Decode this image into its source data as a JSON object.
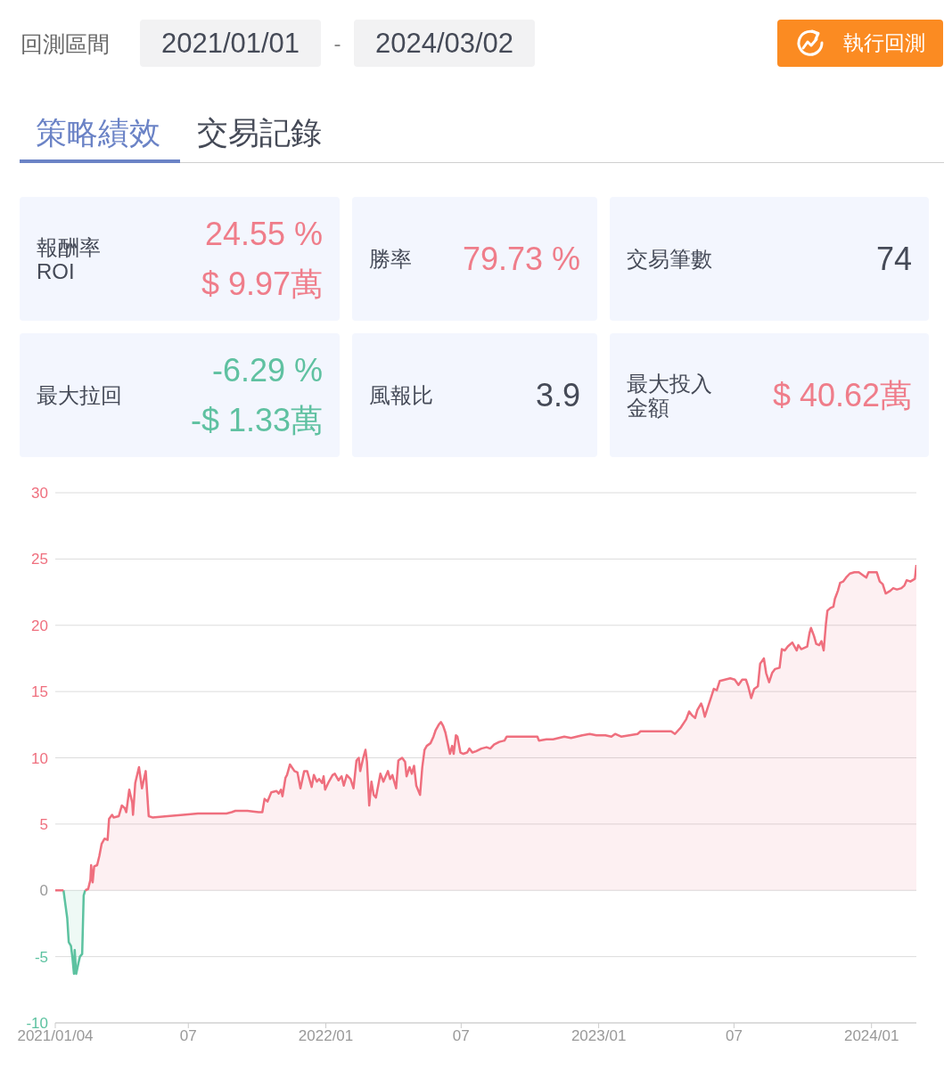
{
  "chart_data": [
    {
      "type": "other",
      "annotations": [
        "回測區間",
        "2021/01/01",
        "-",
        "2024/03/02",
        "執行回測",
        "策略績效",
        "交易記錄"
      ]
    },
    {
      "type": "other",
      "title": "報酬率 ROI",
      "annotations": [
        "24.55 %",
        "$ 9.97萬"
      ],
      "color": "#ef7d8a"
    },
    {
      "type": "other",
      "title": "勝率",
      "annotations": [
        "79.73 %"
      ],
      "color": "#ef7d8a"
    },
    {
      "type": "other",
      "title": "交易筆數",
      "annotations": [
        "74"
      ],
      "color": "#454a57"
    },
    {
      "type": "other",
      "title": "最大拉回",
      "annotations": [
        "-6.29 %",
        "-$ 1.33萬"
      ],
      "color": "#5fc1a1"
    },
    {
      "type": "other",
      "title": "風報比",
      "annotations": [
        "3.9"
      ],
      "color": "#454a57"
    },
    {
      "type": "other",
      "title": "最大投入金額",
      "annotations": [
        "$ 40.62萬"
      ],
      "color": "#ef7d8a"
    },
    {
      "type": "area",
      "xlim": [
        "2021-01-04",
        "2024-03-01"
      ],
      "xticks": [
        {
          "value": "2021-01-04",
          "label": "2021/01/04"
        },
        {
          "value": "2021-07-01",
          "label": "07"
        },
        {
          "value": "2022-01-01",
          "label": "2022/01"
        },
        {
          "value": "2022-07-01",
          "label": "07"
        },
        {
          "value": "2023-01-01",
          "label": "2023/01"
        },
        {
          "value": "2023-07-01",
          "label": "07"
        },
        {
          "value": "2024-01-01",
          "label": "2024/01"
        }
      ],
      "ylim": [
        -10,
        30
      ],
      "yticks": [
        -10,
        -5,
        0,
        5,
        10,
        15,
        20,
        25,
        30
      ],
      "grid": "y",
      "series": [
        {
          "type": "line",
          "color": "#ef6f7e",
          "x": [
            "2021-01-04",
            "2021-01-15"
          ],
          "values": [
            0,
            0
          ]
        },
        {
          "color": "#5cc2a0",
          "x": [
            "2021-01-15",
            "2021-01-20",
            "2021-01-22",
            "2021-01-25",
            "2021-01-27",
            "2021-01-29",
            "2021-01-30",
            "2021-02-01",
            "2021-02-04",
            "2021-02-06",
            "2021-02-09",
            "2021-02-11",
            "2021-02-13"
          ],
          "values": [
            0,
            -2.1,
            -3.9,
            -4.2,
            -5.1,
            -6.3,
            -4.5,
            -6.3,
            -5.5,
            -5.0,
            -4.8,
            -0.4,
            0
          ]
        },
        {
          "color": "#ef6f7e",
          "x": [
            "2021-02-13",
            "2021-02-17",
            "2021-02-20",
            "2021-02-21",
            "2021-02-23",
            "2021-02-25",
            "2021-03-01",
            "2021-03-04",
            "2021-03-07",
            "2021-03-11",
            "2021-03-15",
            "2021-03-17",
            "2021-03-21",
            "2021-03-23",
            "2021-03-30",
            "2021-04-03",
            "2021-04-07",
            "2021-04-09",
            "2021-04-13",
            "2021-04-17",
            "2021-04-18",
            "2021-04-21",
            "2021-04-26",
            "2021-04-30",
            "2021-05-05",
            "2021-05-09",
            "2021-05-14",
            "2021-06-03",
            "2021-06-24",
            "2021-07-14",
            "2021-08-02",
            "2021-08-21",
            "2021-08-28",
            "2021-09-02",
            "2021-09-18",
            "2021-10-03",
            "2021-10-08",
            "2021-10-11",
            "2021-10-15",
            "2021-10-20",
            "2021-10-27",
            "2021-10-30",
            "2021-11-02",
            "2021-11-04",
            "2021-11-08",
            "2021-11-10",
            "2021-11-14",
            "2021-11-20",
            "2021-11-24",
            "2021-11-28",
            "2021-12-03",
            "2021-12-07",
            "2021-12-13",
            "2021-12-16",
            "2021-12-20",
            "2021-12-23",
            "2021-12-27",
            "2021-12-29",
            "2021-12-31",
            "2022-01-05",
            "2022-01-10",
            "2022-01-13",
            "2022-01-18",
            "2022-01-22",
            "2022-01-25",
            "2022-01-29",
            "2022-02-03",
            "2022-02-07",
            "2022-02-11",
            "2022-02-14",
            "2022-02-16",
            "2022-02-20",
            "2022-02-23",
            "2022-02-25",
            "2022-02-28",
            "2022-03-03",
            "2022-03-06",
            "2022-03-09",
            "2022-03-13",
            "2022-03-15",
            "2022-03-19",
            "2022-03-22",
            "2022-03-25",
            "2022-03-28",
            "2022-03-31",
            "2022-04-02",
            "2022-04-05",
            "2022-04-08",
            "2022-04-13",
            "2022-04-17",
            "2022-04-19",
            "2022-04-23",
            "2022-04-26",
            "2022-04-29",
            "2022-05-02",
            "2022-05-07",
            "2022-05-10",
            "2022-05-13",
            "2022-05-16",
            "2022-05-21",
            "2022-05-25",
            "2022-05-28",
            "2022-06-01",
            "2022-06-04",
            "2022-06-07",
            "2022-06-10",
            "2022-06-16",
            "2022-06-19",
            "2022-06-21",
            "2022-06-24",
            "2022-06-26",
            "2022-06-30",
            "2022-07-04",
            "2022-07-09",
            "2022-07-12",
            "2022-07-16",
            "2022-07-21",
            "2022-07-28",
            "2022-08-04",
            "2022-08-09",
            "2022-08-14",
            "2022-08-21",
            "2022-08-28",
            "2022-08-31",
            "2022-09-24",
            "2022-10-11",
            "2022-10-13",
            "2022-10-23",
            "2022-11-01",
            "2022-11-16",
            "2022-11-25",
            "2022-12-10",
            "2022-12-20",
            "2022-12-29",
            "2023-01-10",
            "2023-01-18",
            "2023-01-23",
            "2023-01-31",
            "2023-02-11",
            "2023-02-22",
            "2023-02-26",
            "2023-03-15",
            "2023-03-31",
            "2023-04-08",
            "2023-04-13",
            "2023-04-21",
            "2023-04-28",
            "2023-05-02",
            "2023-05-06",
            "2023-05-10",
            "2023-05-13",
            "2023-05-18",
            "2023-05-20",
            "2023-05-23",
            "2023-05-27",
            "2023-05-31",
            "2023-06-04",
            "2023-06-08",
            "2023-06-12",
            "2023-06-19",
            "2023-06-26",
            "2023-07-02",
            "2023-07-07",
            "2023-07-12",
            "2023-07-17",
            "2023-07-20",
            "2023-07-24",
            "2023-07-28",
            "2023-08-02",
            "2023-08-05",
            "2023-08-10",
            "2023-08-13",
            "2023-08-17",
            "2023-08-21",
            "2023-08-25",
            "2023-08-31",
            "2023-09-03",
            "2023-09-07",
            "2023-09-11",
            "2023-09-17",
            "2023-09-20",
            "2023-09-23",
            "2023-09-25",
            "2023-09-29",
            "2023-10-07",
            "2023-10-10",
            "2023-10-12",
            "2023-10-16",
            "2023-10-19",
            "2023-10-23",
            "2023-10-26",
            "2023-10-29",
            "2023-11-01",
            "2023-11-03",
            "2023-11-07",
            "2023-11-11",
            "2023-11-13",
            "2023-11-17",
            "2023-11-20",
            "2023-11-24",
            "2023-11-28",
            "2023-12-03",
            "2023-12-09",
            "2023-12-15",
            "2023-12-20",
            "2023-12-25",
            "2023-12-28",
            "2024-01-02",
            "2024-01-08",
            "2024-01-12",
            "2024-01-16",
            "2024-01-20",
            "2024-01-26",
            "2024-01-30",
            "2024-02-04",
            "2024-02-10",
            "2024-02-14",
            "2024-02-17",
            "2024-02-22",
            "2024-02-28",
            "2024-03-01"
          ],
          "values": [
            0,
            0.1,
            0.8,
            1.9,
            0.6,
            1.8,
            1.9,
            2.6,
            3.5,
            3.9,
            3.8,
            5.4,
            5.7,
            5.5,
            5.6,
            6.4,
            6.2,
            5.9,
            7.6,
            6.6,
            5.7,
            8.1,
            9.3,
            7.7,
            9.0,
            5.6,
            5.5,
            5.6,
            5.7,
            5.8,
            5.8,
            5.8,
            5.9,
            6.0,
            6.0,
            5.9,
            5.9,
            6.9,
            6.7,
            7.4,
            7.5,
            7.3,
            7.6,
            7.1,
            8.5,
            8.7,
            9.5,
            9.0,
            8.9,
            7.7,
            9.0,
            9.0,
            7.8,
            8.7,
            8.2,
            8.4,
            8.1,
            8.6,
            7.6,
            8.2,
            8.7,
            8.8,
            8.3,
            8.6,
            7.9,
            8.7,
            8.4,
            7.7,
            9.8,
            10.0,
            9.0,
            10.0,
            10.6,
            9.7,
            6.4,
            8.2,
            7.2,
            7.0,
            8.2,
            8.8,
            8.2,
            8.6,
            9.0,
            8.4,
            8.7,
            8.3,
            7.7,
            9.8,
            10.0,
            9.7,
            8.6,
            9.3,
            8.8,
            9.4,
            7.9,
            7.2,
            9.3,
            10.6,
            10.9,
            11.1,
            11.6,
            12.1,
            12.5,
            12.7,
            12.4,
            11.9,
            10.3,
            10.9,
            10.3,
            11.7,
            11.6,
            10.4,
            10.3,
            10.4,
            10.7,
            10.4,
            10.5,
            10.7,
            10.8,
            10.7,
            11.0,
            11.2,
            11.3,
            11.6,
            11.6,
            11.6,
            11.3,
            11.4,
            11.4,
            11.6,
            11.5,
            11.7,
            11.8,
            11.7,
            11.7,
            11.6,
            11.8,
            11.6,
            11.7,
            11.8,
            12.0,
            12.0,
            12.0,
            12.0,
            11.8,
            12.3,
            12.9,
            13.5,
            13.2,
            13.0,
            13.6,
            14.1,
            13.8,
            13.1,
            13.8,
            14.5,
            15.2,
            15.1,
            15.8,
            15.9,
            16.0,
            15.9,
            15.5,
            15.9,
            15.9,
            15.4,
            14.5,
            15.2,
            15.4,
            17.1,
            17.5,
            16.4,
            15.7,
            16.4,
            16.7,
            16.8,
            18.2,
            18.1,
            18.4,
            18.7,
            18.4,
            18.1,
            18.5,
            18.2,
            18.4,
            19.4,
            19.8,
            19.2,
            18.6,
            18.5,
            18.8,
            18.1,
            20.1,
            21.1,
            21.3,
            21.4,
            22.0,
            22.6,
            23.2,
            23.3,
            23.6,
            23.9,
            24.0,
            24.0,
            23.8,
            23.6,
            24.0,
            24.0,
            24.0,
            23.3,
            23.1,
            22.4,
            22.6,
            22.8,
            22.7,
            22.8,
            23.0,
            23.4,
            23.3,
            23.5,
            24.55
          ]
        }
      ]
    }
  ]
}
